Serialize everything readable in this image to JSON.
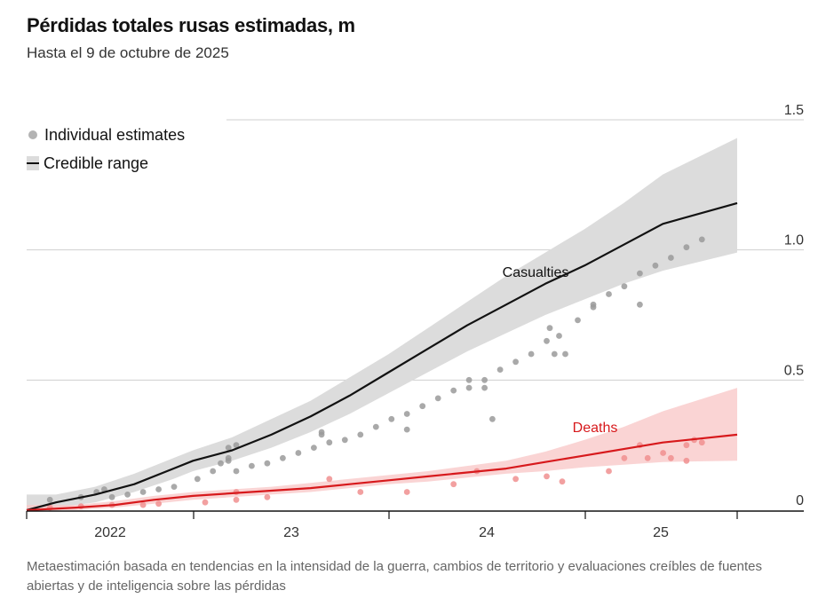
{
  "header": {
    "title": "Pérdidas totales rusas estimadas, m",
    "subtitle": "Hasta el 9 de octubre de 2025"
  },
  "legend": {
    "estimates_label": "Individual estimates",
    "range_label": "Credible range"
  },
  "footnote": "Metaestimación basada en tendencias en la intensidad de la guerra, cambios de territorio y evaluaciones creíbles de fuentes abiertas y de inteligencia sobre las pérdidas",
  "colors": {
    "casualties_line": "#121212",
    "casualties_band": "#dcdcdc",
    "casualties_points": "#9a9a9a",
    "deaths_line": "#d7191c",
    "deaths_band": "#f9c9c9",
    "deaths_points": "#f08f8f"
  },
  "chart_data": {
    "type": "line",
    "title": "Pérdidas totales rusas estimadas, m",
    "subtitle": "Hasta el 9 de octubre de 2025",
    "ylabel": "",
    "ylim": [
      0,
      1.5
    ],
    "yticks": [
      0,
      0.5,
      1.0,
      1.5
    ],
    "ytick_labels": [
      "0",
      "0.5",
      "1.0",
      "1.5"
    ],
    "xlim": [
      2022.15,
      2025.78
    ],
    "xticks": [
      2022,
      2023,
      2024,
      2025
    ],
    "xtick_labels": [
      "2022",
      "23",
      "24",
      "25"
    ],
    "grid": true,
    "legend_position": "top-left",
    "annotations": [
      {
        "text": "Casualties",
        "series": "Casualties"
      },
      {
        "text": "Deaths",
        "series": "Deaths"
      }
    ],
    "series": [
      {
        "name": "Casualties",
        "x": [
          2022.15,
          2022.3,
          2022.5,
          2022.7,
          2022.9,
          2023.0,
          2023.2,
          2023.4,
          2023.6,
          2023.8,
          2024.0,
          2024.2,
          2024.4,
          2024.6,
          2024.8,
          2025.0,
          2025.2,
          2025.4,
          2025.78
        ],
        "y": [
          0.0,
          0.03,
          0.06,
          0.1,
          0.16,
          0.19,
          0.23,
          0.29,
          0.36,
          0.44,
          0.53,
          0.62,
          0.71,
          0.79,
          0.87,
          0.94,
          1.02,
          1.1,
          1.18
        ],
        "lower": [
          0.0,
          0.01,
          0.03,
          0.07,
          0.12,
          0.15,
          0.19,
          0.24,
          0.3,
          0.37,
          0.45,
          0.53,
          0.61,
          0.68,
          0.75,
          0.81,
          0.87,
          0.92,
          0.99
        ],
        "upper": [
          0.06,
          0.06,
          0.09,
          0.14,
          0.2,
          0.23,
          0.28,
          0.35,
          0.42,
          0.51,
          0.6,
          0.7,
          0.8,
          0.9,
          0.99,
          1.08,
          1.18,
          1.29,
          1.43
        ]
      },
      {
        "name": "Deaths",
        "x": [
          2022.15,
          2022.4,
          2022.6,
          2022.8,
          2023.0,
          2023.2,
          2023.4,
          2023.6,
          2023.8,
          2024.0,
          2024.2,
          2024.4,
          2024.6,
          2024.8,
          2025.0,
          2025.2,
          2025.4,
          2025.78
        ],
        "y": [
          0.0,
          0.01,
          0.02,
          0.04,
          0.055,
          0.065,
          0.075,
          0.085,
          0.1,
          0.115,
          0.13,
          0.145,
          0.16,
          0.185,
          0.21,
          0.235,
          0.26,
          0.29
        ],
        "lower": [
          0.0,
          0.0,
          0.01,
          0.025,
          0.04,
          0.05,
          0.06,
          0.07,
          0.085,
          0.1,
          0.11,
          0.125,
          0.14,
          0.15,
          0.165,
          0.175,
          0.185,
          0.19
        ],
        "upper": [
          0.02,
          0.02,
          0.035,
          0.055,
          0.07,
          0.08,
          0.09,
          0.105,
          0.12,
          0.135,
          0.15,
          0.17,
          0.19,
          0.225,
          0.27,
          0.32,
          0.38,
          0.47
        ]
      }
    ],
    "estimates": [
      {
        "series": "Casualties",
        "points": [
          [
            2022.3,
            0.04
          ],
          [
            2022.5,
            0.05
          ],
          [
            2022.6,
            0.07
          ],
          [
            2022.65,
            0.08
          ],
          [
            2022.7,
            0.05
          ],
          [
            2022.8,
            0.06
          ],
          [
            2022.9,
            0.07
          ],
          [
            2023.0,
            0.08
          ],
          [
            2023.1,
            0.09
          ],
          [
            2023.25,
            0.12
          ],
          [
            2023.35,
            0.15
          ],
          [
            2023.4,
            0.18
          ],
          [
            2023.45,
            0.19
          ],
          [
            2023.45,
            0.2
          ],
          [
            2023.45,
            0.24
          ],
          [
            2023.5,
            0.25
          ],
          [
            2023.5,
            0.15
          ],
          [
            2023.6,
            0.17
          ],
          [
            2023.7,
            0.18
          ],
          [
            2023.8,
            0.2
          ],
          [
            2023.9,
            0.22
          ],
          [
            2024.0,
            0.24
          ],
          [
            2024.05,
            0.29
          ],
          [
            2024.05,
            0.3
          ],
          [
            2024.1,
            0.26
          ],
          [
            2024.2,
            0.27
          ],
          [
            2024.3,
            0.29
          ],
          [
            2024.4,
            0.32
          ],
          [
            2024.5,
            0.35
          ],
          [
            2024.6,
            0.37
          ],
          [
            2024.6,
            0.31
          ],
          [
            2024.7,
            0.4
          ],
          [
            2024.8,
            0.43
          ],
          [
            2024.9,
            0.46
          ],
          [
            2025.0,
            0.5
          ],
          [
            2025.0,
            0.47
          ],
          [
            2025.1,
            0.5
          ],
          [
            2025.1,
            0.47
          ],
          [
            2025.15,
            0.35
          ],
          [
            2025.2,
            0.54
          ],
          [
            2025.3,
            0.57
          ],
          [
            2025.4,
            0.6
          ],
          [
            2025.5,
            0.65
          ],
          [
            2025.52,
            0.7
          ],
          [
            2025.55,
            0.6
          ],
          [
            2025.58,
            0.67
          ],
          [
            2025.62,
            0.6
          ],
          [
            2025.7,
            0.73
          ],
          [
            2025.8,
            0.78
          ],
          [
            2025.8,
            0.79
          ],
          [
            2025.9,
            0.83
          ],
          [
            2026.0,
            0.86
          ],
          [
            2026.1,
            0.91
          ],
          [
            2026.1,
            0.79
          ],
          [
            2026.2,
            0.94
          ],
          [
            2026.3,
            0.97
          ],
          [
            2026.4,
            1.01
          ],
          [
            2026.5,
            1.04
          ]
        ]
      },
      {
        "series": "Deaths",
        "points": [
          [
            2022.3,
            0.01
          ],
          [
            2022.5,
            0.015
          ],
          [
            2022.7,
            0.02
          ],
          [
            2022.9,
            0.02
          ],
          [
            2023.0,
            0.025
          ],
          [
            2023.3,
            0.03
          ],
          [
            2023.5,
            0.04
          ],
          [
            2023.5,
            0.07
          ],
          [
            2023.7,
            0.05
          ],
          [
            2024.1,
            0.12
          ],
          [
            2024.3,
            0.07
          ],
          [
            2024.6,
            0.07
          ],
          [
            2024.9,
            0.1
          ],
          [
            2025.05,
            0.15
          ],
          [
            2025.3,
            0.12
          ],
          [
            2025.5,
            0.13
          ],
          [
            2025.6,
            0.11
          ],
          [
            2025.9,
            0.15
          ],
          [
            2026.0,
            0.2
          ],
          [
            2026.1,
            0.25
          ],
          [
            2026.15,
            0.2
          ],
          [
            2026.25,
            0.22
          ],
          [
            2026.3,
            0.2
          ],
          [
            2026.4,
            0.25
          ],
          [
            2026.45,
            0.27
          ],
          [
            2026.5,
            0.26
          ],
          [
            2026.4,
            0.19
          ]
        ]
      }
    ]
  }
}
